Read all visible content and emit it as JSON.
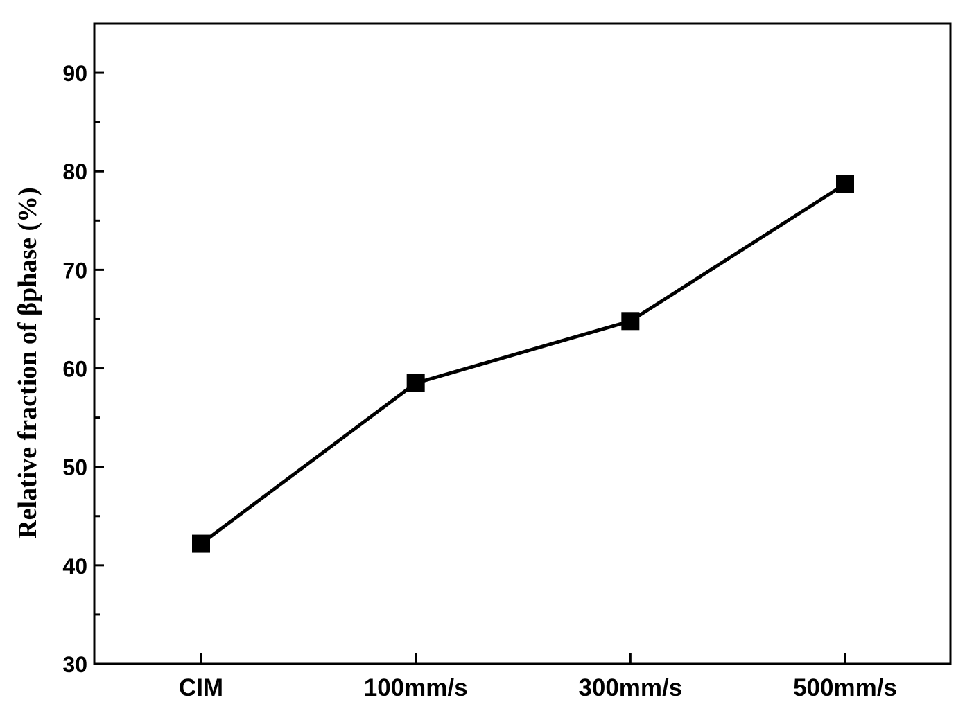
{
  "chart_data": {
    "type": "line",
    "title": "",
    "xlabel": "",
    "ylabel": "Relative fraction of βphase (%)",
    "categories": [
      "CIM",
      "100mm/s",
      "300mm/s",
      "500mm/s"
    ],
    "series": [
      {
        "values": [
          42.2,
          58.5,
          64.8,
          78.7
        ],
        "color": "#000000",
        "marker": "square"
      }
    ],
    "ylim": [
      30,
      95
    ],
    "yticks_major": [
      30,
      40,
      50,
      60,
      70,
      80,
      90
    ],
    "yticks_minor": [
      35,
      45,
      55,
      65,
      75,
      85
    ],
    "grid": false,
    "legend": "none"
  }
}
